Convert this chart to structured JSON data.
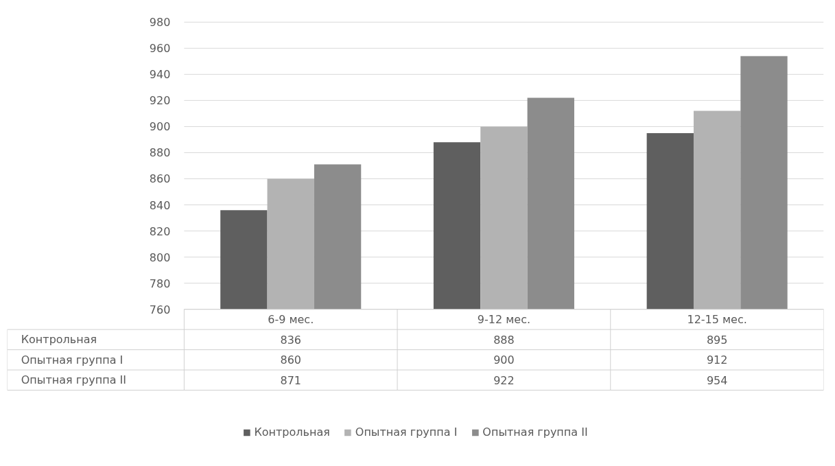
{
  "chart_data": {
    "type": "bar",
    "categories": [
      "6-9 мес.",
      "9-12 мес.",
      "12-15 мес."
    ],
    "series": [
      {
        "name": "Контрольная",
        "color": "#5f5f5f",
        "values": [
          836,
          888,
          895
        ]
      },
      {
        "name": "Опытная группа I",
        "color": "#b3b3b3",
        "values": [
          860,
          900,
          912
        ]
      },
      {
        "name": "Опытная группа II",
        "color": "#8c8c8c",
        "values": [
          871,
          922,
          954
        ]
      }
    ],
    "ylim": [
      760,
      980
    ],
    "yticks": [
      760,
      780,
      800,
      820,
      840,
      860,
      880,
      900,
      920,
      940,
      960,
      980
    ],
    "grid": "y",
    "legend": "bottom",
    "data_labels": true
  }
}
